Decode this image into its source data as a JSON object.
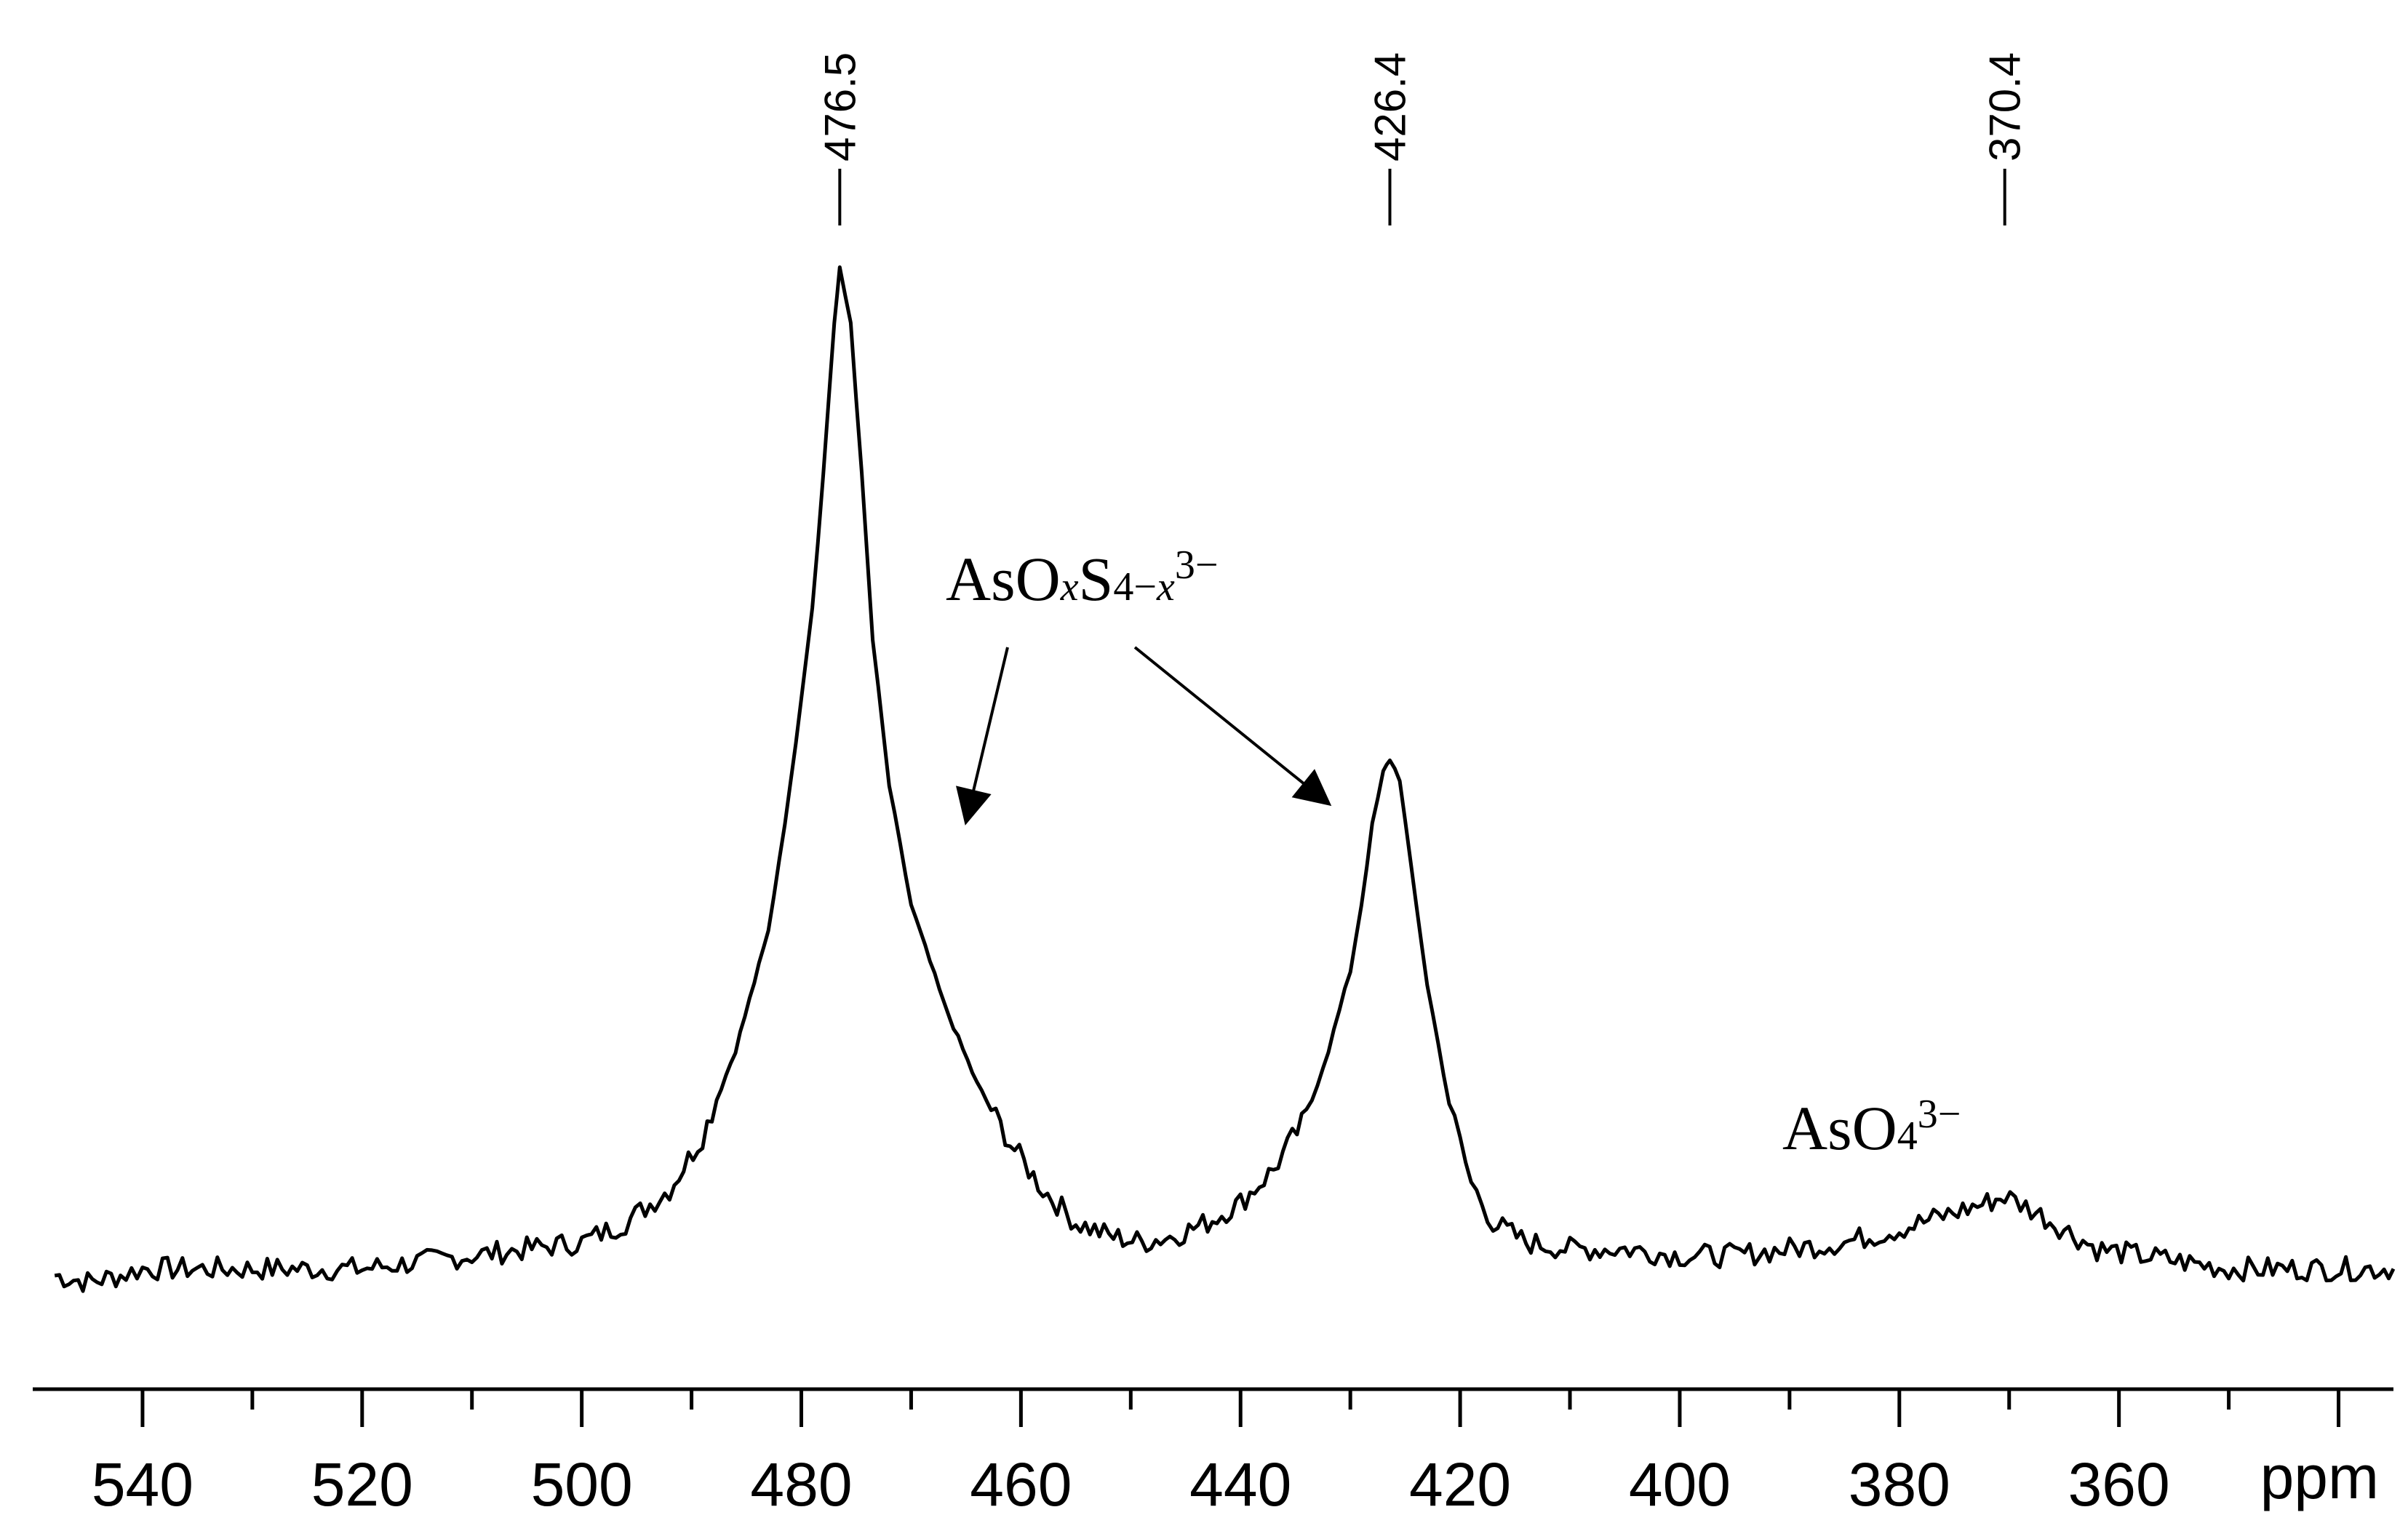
{
  "chart_data": {
    "type": "line",
    "title": "",
    "xlabel": "ppm",
    "ylabel": "",
    "xlim": [
      550,
      335
    ],
    "x_reversed": true,
    "x_ticks_major": [
      540,
      520,
      500,
      480,
      460,
      440,
      420,
      400,
      380,
      360,
      340
    ],
    "x_tick_labels": [
      "540",
      "520",
      "500",
      "480",
      "460",
      "440",
      "420",
      "400",
      "380",
      "360"
    ],
    "x_ticks_minor_step": 10,
    "y_axis_visible": false,
    "grid": false,
    "legend": "none",
    "series": [
      {
        "points": [
          [
            548,
            0.04
          ],
          [
            545,
            0.03
          ],
          [
            542,
            0.04
          ],
          [
            540,
            0.05
          ],
          [
            535,
            0.05
          ],
          [
            530,
            0.05
          ],
          [
            525,
            0.05
          ],
          [
            520,
            0.05
          ],
          [
            515,
            0.06
          ],
          [
            510,
            0.07
          ],
          [
            505,
            0.08
          ],
          [
            500,
            0.09
          ],
          [
            496,
            0.12
          ],
          [
            492,
            0.17
          ],
          [
            489,
            0.25
          ],
          [
            486,
            0.38
          ],
          [
            483,
            0.56
          ],
          [
            481,
            0.78
          ],
          [
            479,
            1.05
          ],
          [
            478,
            1.25
          ],
          [
            477,
            1.48
          ],
          [
            476.5,
            1.56
          ],
          [
            475.5,
            1.48
          ],
          [
            474.5,
            1.25
          ],
          [
            473.5,
            1.0
          ],
          [
            472,
            0.78
          ],
          [
            470,
            0.6
          ],
          [
            467,
            0.45
          ],
          [
            464,
            0.33
          ],
          [
            461,
            0.24
          ],
          [
            458,
            0.17
          ],
          [
            455,
            0.12
          ],
          [
            452,
            0.1
          ],
          [
            449,
            0.09
          ],
          [
            446,
            0.1
          ],
          [
            443,
            0.12
          ],
          [
            440,
            0.15
          ],
          [
            437,
            0.2
          ],
          [
            434,
            0.28
          ],
          [
            432,
            0.38
          ],
          [
            430,
            0.5
          ],
          [
            429,
            0.6
          ],
          [
            428,
            0.72
          ],
          [
            427,
            0.8
          ],
          [
            426.4,
            0.82
          ],
          [
            425.5,
            0.79
          ],
          [
            424.5,
            0.66
          ],
          [
            423,
            0.48
          ],
          [
            421,
            0.3
          ],
          [
            419,
            0.18
          ],
          [
            417,
            0.12
          ],
          [
            414,
            0.09
          ],
          [
            410,
            0.08
          ],
          [
            405,
            0.08
          ],
          [
            400,
            0.07
          ],
          [
            395,
            0.07
          ],
          [
            390,
            0.08
          ],
          [
            385,
            0.09
          ],
          [
            380,
            0.11
          ],
          [
            376,
            0.13
          ],
          [
            372,
            0.15
          ],
          [
            370.4,
            0.16
          ],
          [
            368,
            0.14
          ],
          [
            365,
            0.11
          ],
          [
            362,
            0.08
          ],
          [
            358,
            0.07
          ],
          [
            354,
            0.06
          ],
          [
            350,
            0.05
          ],
          [
            346,
            0.05
          ],
          [
            342,
            0.05
          ],
          [
            338,
            0.05
          ],
          [
            335,
            0.05
          ]
        ]
      }
    ],
    "peak_labels": [
      "476.5",
      "426.4",
      "370.4"
    ],
    "peak_positions": [
      476.5,
      426.4,
      370.4
    ],
    "annotations": {
      "oxythio": {
        "base": "AsO",
        "sub_x": "x",
        "mid": "S",
        "sub_tail": "4−",
        "sub_x2": "x",
        "sup": "3−",
        "arrow_targets_ppm": [
          465,
          428
        ]
      },
      "arsenate": {
        "base": "AsO",
        "sub": "4",
        "sup": "3−",
        "position_ppm": 372
      }
    }
  }
}
